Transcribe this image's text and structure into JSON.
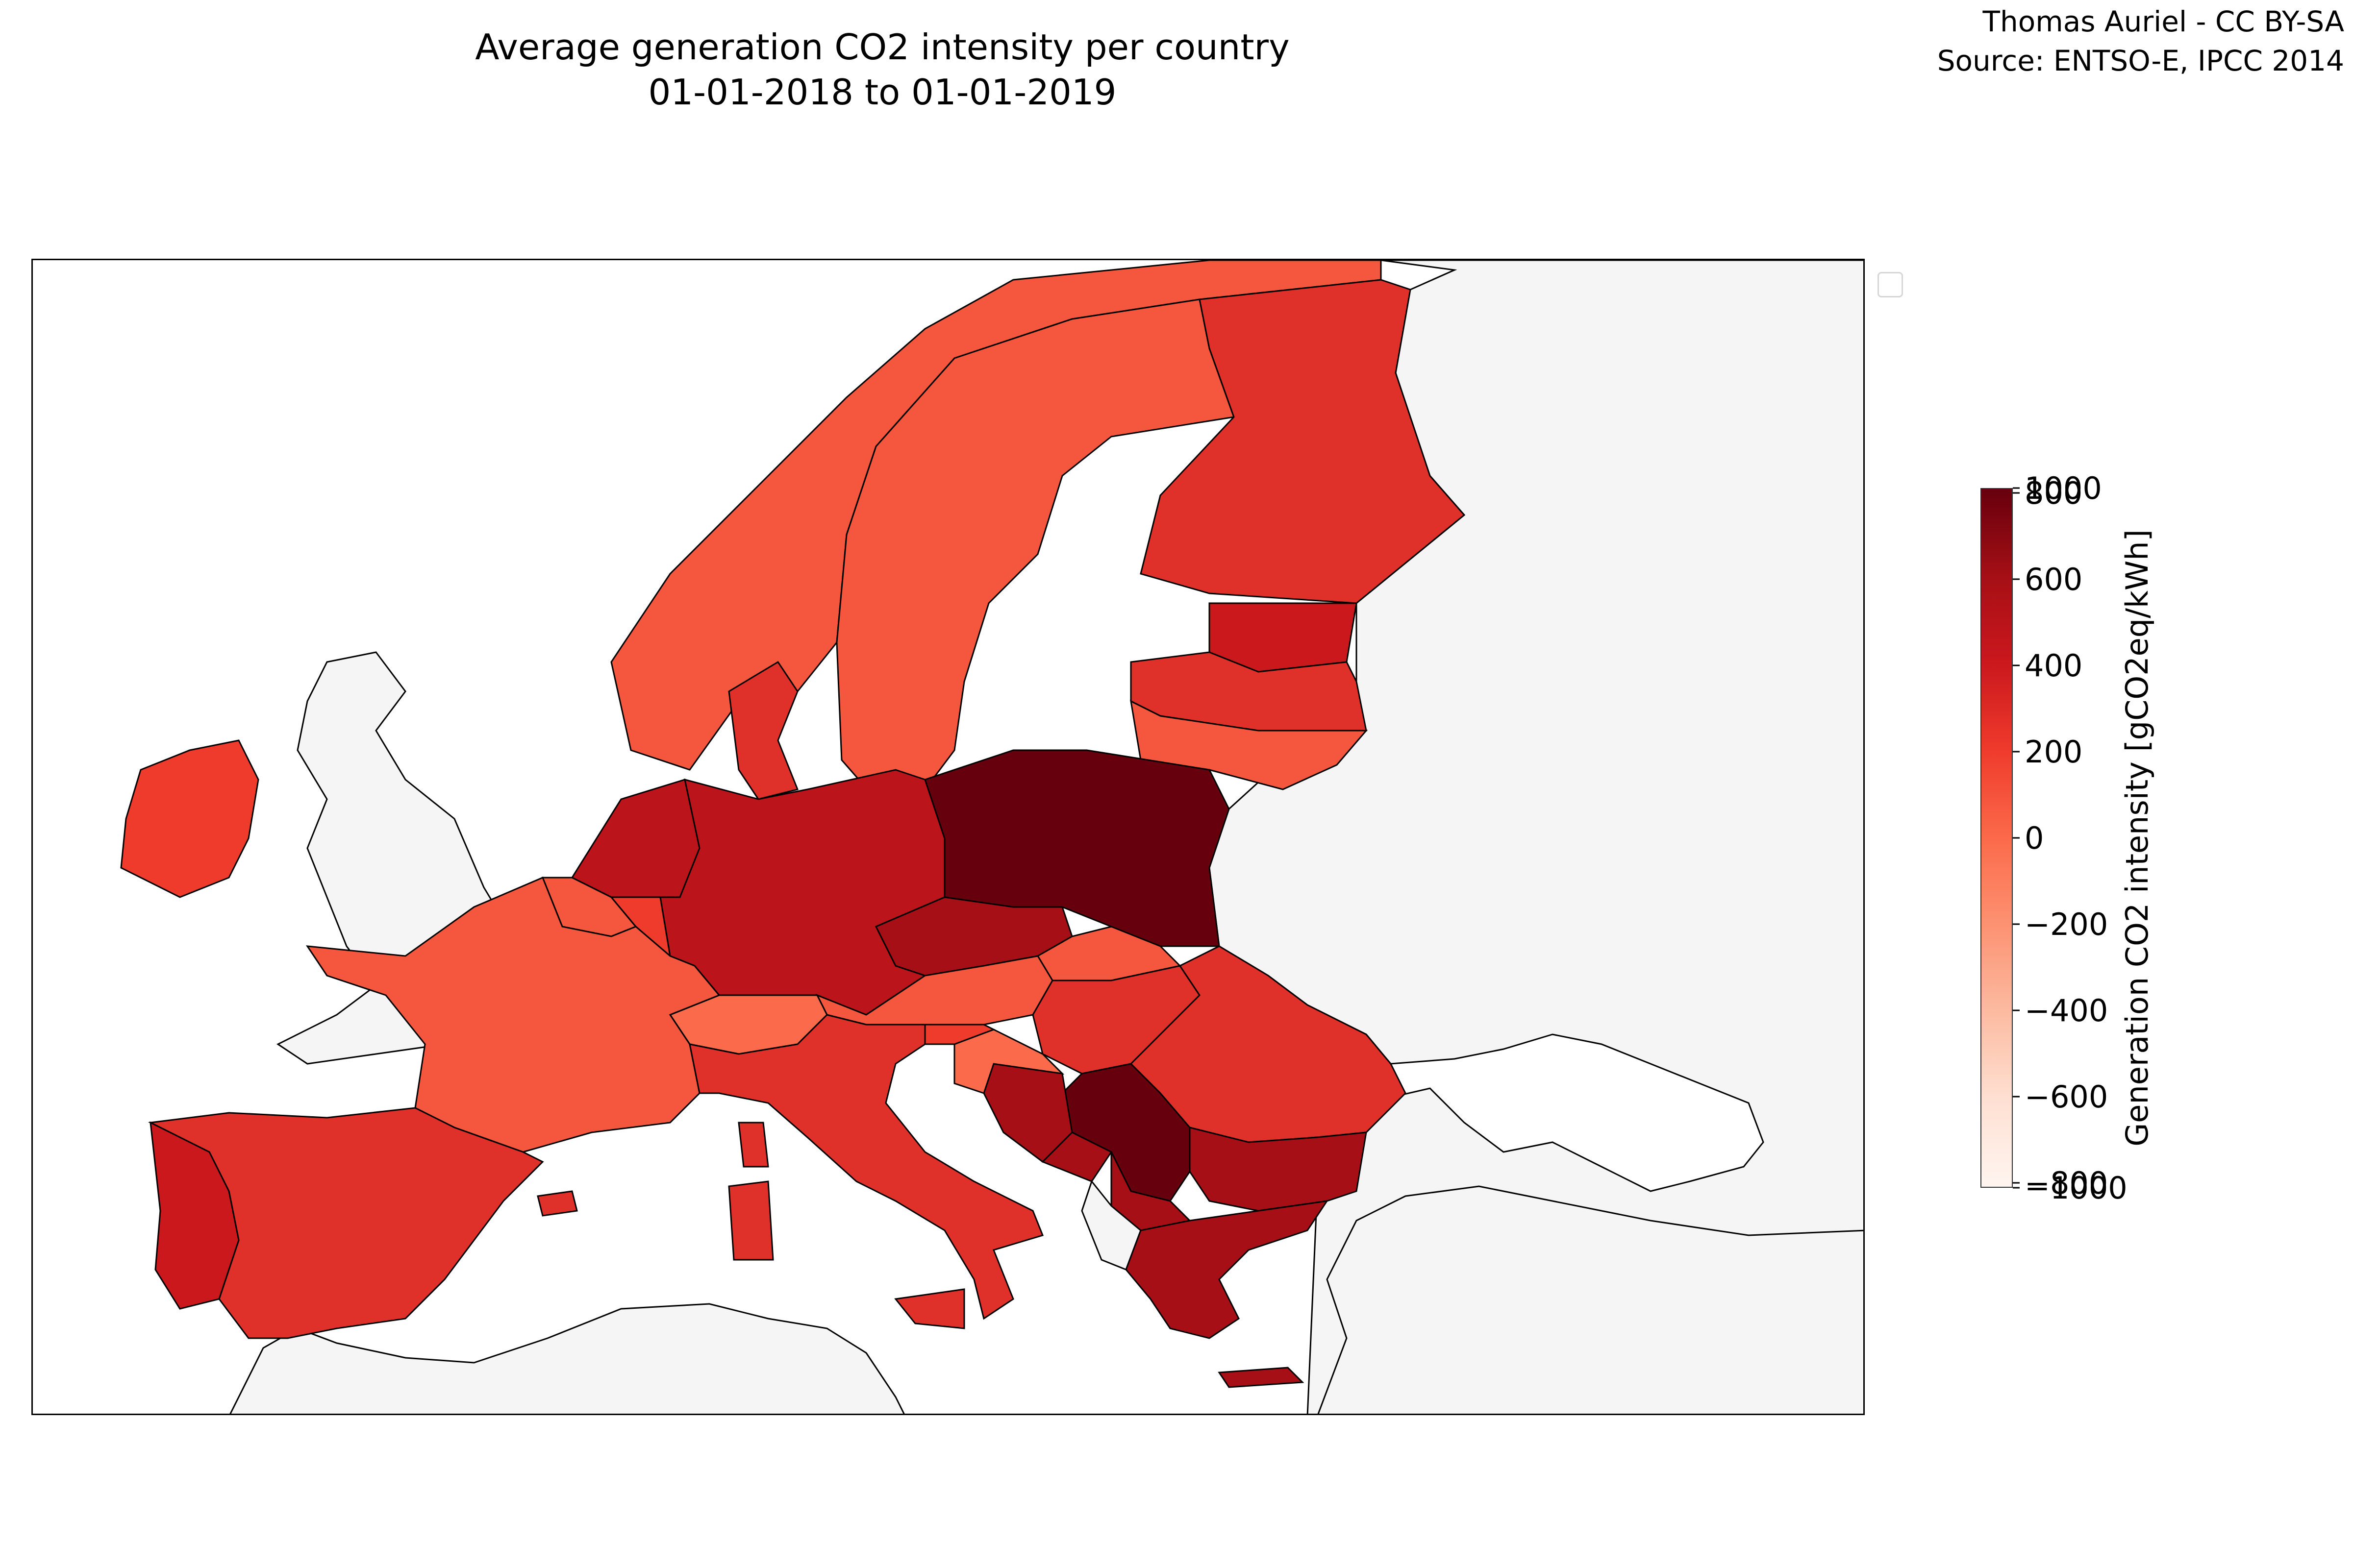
{
  "title": {
    "line1": "Average generation CO2 intensity per country",
    "line2": "01-01-2018 to 01-01-2019"
  },
  "credit": {
    "line1": "Thomas Auriel - CC BY-SA",
    "line2": "Source: ENTSO-E, IPCC 2014"
  },
  "colorbar": {
    "label": "Generation CO2 intensity [gCO2eq/kWh]",
    "ticks_inner": [
      "800",
      "600",
      "400",
      "200",
      "0",
      "−200",
      "−400",
      "−600",
      "−800"
    ],
    "ticks_outer": [
      "1000",
      "−1000"
    ],
    "range_inner": [
      -800,
      800
    ],
    "range_outer": [
      -1000,
      1000
    ],
    "colormap": "Reds"
  },
  "colors": {
    "poland": "#67000d",
    "coal_heavy": "#a50f15",
    "high": "#bb141a",
    "mid_high": "#cb181d",
    "mid": "#e0302a",
    "mid_low": "#ef3b2c",
    "low": "#f4573e",
    "lower": "#fb6a4a",
    "no_data": "#f5f5f5",
    "sea": "#ffffff"
  },
  "legend": {
    "visible": true,
    "entries": []
  }
}
